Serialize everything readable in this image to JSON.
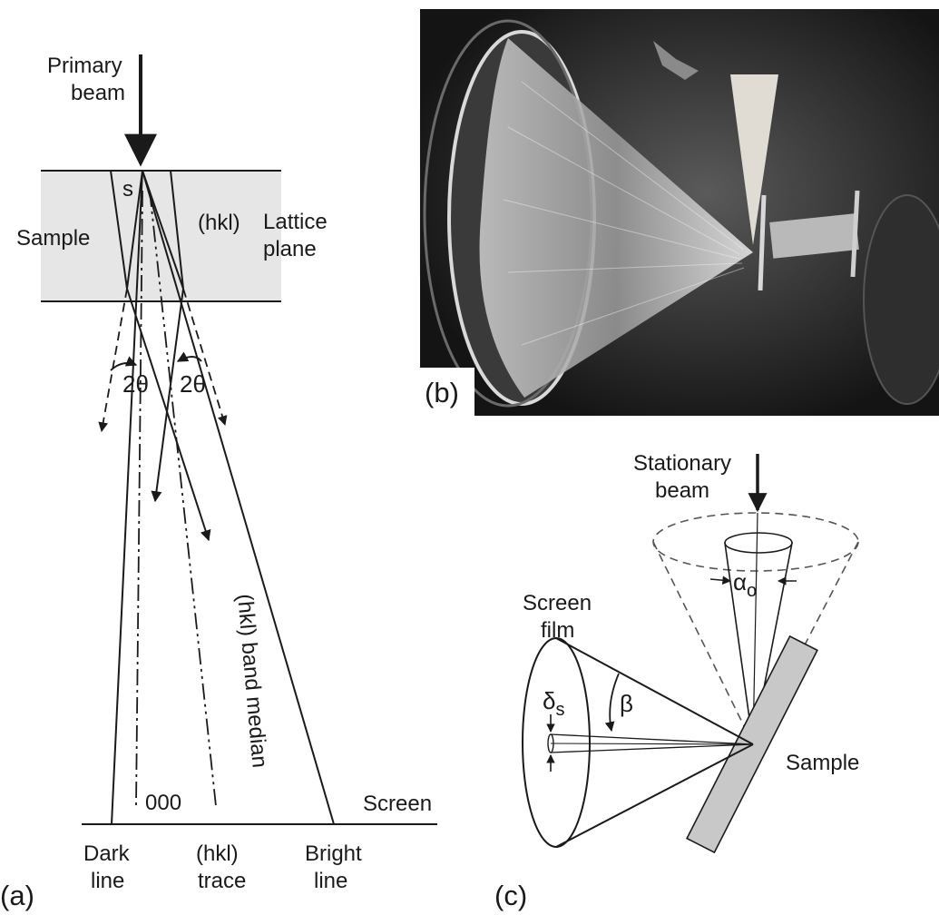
{
  "panel_a": {
    "panel_label": "(a)",
    "primary_beam": [
      "Primary",
      "beam"
    ],
    "s_label": "s",
    "sample_label": "Sample",
    "hkl_label": "(hkl)",
    "lattice_plane": [
      "Lattice",
      "plane"
    ],
    "two_theta_left": "2θ",
    "two_theta_right": "2θ",
    "band_median": "(hkl) band median",
    "zero_label": "000",
    "screen_label": "Screen",
    "dark_line": [
      "Dark",
      "line"
    ],
    "hkl_trace": [
      "(hkl)",
      "trace"
    ],
    "bright_line": [
      "Bright",
      "line"
    ]
  },
  "panel_b": {
    "panel_label": "(b)"
  },
  "panel_c": {
    "panel_label": "(c)",
    "stationary_beam": [
      "Stationary",
      "beam"
    ],
    "alpha": "α",
    "alpha_sub": "o",
    "screen_film": [
      "Screen",
      "film"
    ],
    "delta": "δ",
    "delta_sub": "s",
    "beta": "β",
    "sample_label": "Sample"
  },
  "colors": {
    "ink": "#1a1a1a",
    "sample_shading": "#e6e6e6",
    "photo_background": "#1c1c1c",
    "sample_plate": "#c8c8c8"
  }
}
